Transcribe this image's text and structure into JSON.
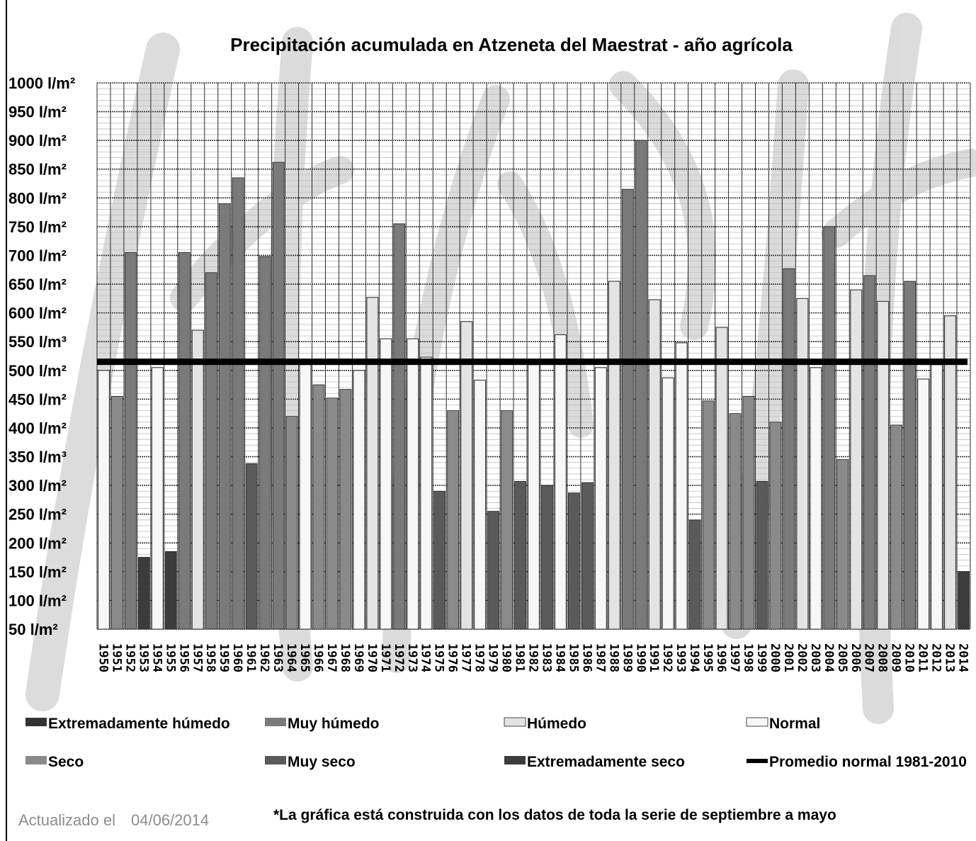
{
  "chart_data": {
    "type": "bar",
    "title": "Precipitación acumulada en Atzeneta del Maestrat - año agrícola",
    "unit": "l/m²",
    "y_ticks": [
      "1000 l/m²",
      "950 l/m²",
      "900 l/m²",
      "850 l/m²",
      "800 l/m²",
      "750 l/m²",
      "700 l/m²",
      "650 l/m²",
      "600 l/m²",
      "550 l/m³",
      "500 l/m²",
      "450 l/m²",
      "400 l/m²",
      "350 l/m³",
      "300 l/m²",
      "250 l/m²",
      "200 l/m²",
      "150 l/m²",
      "100 l/m²",
      "50 l/m²"
    ],
    "ylim": [
      50,
      1000
    ],
    "grid": true,
    "categories": [
      "1950",
      "1951",
      "1952",
      "1953",
      "1954",
      "1955",
      "1956",
      "1957",
      "1958",
      "1959",
      "1960",
      "1961",
      "1962",
      "1963",
      "1964",
      "1965",
      "1966",
      "1967",
      "1968",
      "1969",
      "1970",
      "1971",
      "1972",
      "1973",
      "1974",
      "1975",
      "1976",
      "1977",
      "1978",
      "1979",
      "1980",
      "1981",
      "1982",
      "1983",
      "1984",
      "1985",
      "1986",
      "1987",
      "1988",
      "1989",
      "1990",
      "1991",
      "1992",
      "1993",
      "1994",
      "1995",
      "1996",
      "1997",
      "1998",
      "1999",
      "2000",
      "2001",
      "2002",
      "2003",
      "2004",
      "2005",
      "2006",
      "2007",
      "2008",
      "2009",
      "2010",
      "2011",
      "2012",
      "2013",
      "2014"
    ],
    "values": [
      500,
      455,
      705,
      175,
      505,
      185,
      705,
      570,
      670,
      790,
      835,
      338,
      698,
      862,
      420,
      510,
      475,
      452,
      467,
      500,
      627,
      555,
      755,
      555,
      523,
      290,
      430,
      585,
      483,
      255,
      430,
      307,
      510,
      300,
      562,
      287,
      305,
      505,
      655,
      815,
      900,
      623,
      487,
      548,
      240,
      447,
      575,
      425,
      455,
      307,
      410,
      677,
      625,
      505,
      750,
      345,
      640,
      665,
      620,
      405,
      655,
      485,
      510,
      595,
      150
    ],
    "classes": [
      "Normal",
      "Seco",
      "Muy húmedo",
      "Extremadamente seco",
      "Normal",
      "Extremadamente seco",
      "Muy húmedo",
      "Húmedo",
      "Muy húmedo",
      "Muy húmedo",
      "Muy húmedo",
      "Muy seco",
      "Muy húmedo",
      "Muy húmedo",
      "Seco",
      "Normal",
      "Seco",
      "Seco",
      "Seco",
      "Normal",
      "Húmedo",
      "Normal",
      "Muy húmedo",
      "Normal",
      "Normal",
      "Muy seco",
      "Seco",
      "Húmedo",
      "Normal",
      "Muy seco",
      "Seco",
      "Muy seco",
      "Normal",
      "Muy seco",
      "Normal",
      "Muy seco",
      "Muy seco",
      "Normal",
      "Húmedo",
      "Muy húmedo",
      "Muy húmedo",
      "Húmedo",
      "Normal",
      "Normal",
      "Muy seco",
      "Seco",
      "Húmedo",
      "Seco",
      "Seco",
      "Muy seco",
      "Seco",
      "Muy húmedo",
      "Húmedo",
      "Normal",
      "Muy húmedo",
      "Seco",
      "Húmedo",
      "Muy húmedo",
      "Húmedo",
      "Seco",
      "Muy húmedo",
      "Normal",
      "Normal",
      "Húmedo",
      "Extremadamente seco"
    ],
    "average_line": {
      "name": "Promedio normal 1981-2010",
      "value": 515
    },
    "legend": [
      {
        "name": "Extremadamente húmedo",
        "color": "#333333"
      },
      {
        "name": "Muy húmedo",
        "color": "#7a7a7a"
      },
      {
        "name": "Húmedo",
        "color": "#e3e3e3"
      },
      {
        "name": "Normal",
        "color": "#f7f7f7"
      },
      {
        "name": "Seco",
        "color": "#8a8a8a"
      },
      {
        "name": "Muy seco",
        "color": "#5a5a5a"
      },
      {
        "name": "Extremadamente seco",
        "color": "#3c3c3c"
      },
      {
        "name": "Promedio normal 1981-2010",
        "color": "#000000"
      }
    ],
    "legend_placement": "bottom"
  },
  "class_colors": {
    "Extremadamente húmedo": "#333333",
    "Muy húmedo": "#7a7a7a",
    "Húmedo": "#e3e3e3",
    "Normal": "#f7f7f7",
    "Seco": "#8a8a8a",
    "Muy seco": "#5a5a5a",
    "Extremadamente seco": "#3c3c3c"
  },
  "footer": {
    "updated_label": "Actualizado el",
    "updated_date": "04/06/2014",
    "note": "*La gráfica está construida con los datos de toda la serie de septiembre a mayo"
  }
}
